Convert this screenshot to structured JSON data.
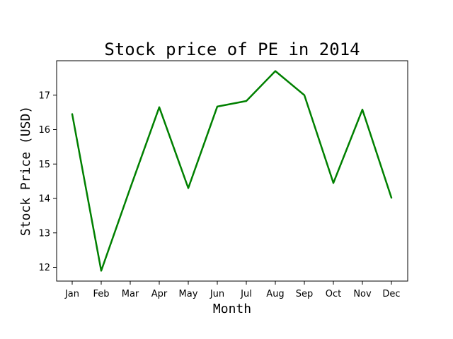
{
  "chart_data": {
    "type": "line",
    "title": "Stock price of PE in 2014",
    "xlabel": "Month",
    "ylabel": "Stock Price (USD)",
    "categories": [
      "Jan",
      "Feb",
      "Mar",
      "Apr",
      "May",
      "Jun",
      "Jul",
      "Aug",
      "Sep",
      "Oct",
      "Nov",
      "Dec"
    ],
    "series": [
      {
        "values": [
          16.45,
          11.9,
          14.3,
          16.65,
          14.3,
          16.67,
          16.83,
          17.7,
          17.0,
          14.45,
          16.58,
          14.02
        ],
        "color": "#008000"
      }
    ],
    "yticks": [
      12,
      13,
      14,
      15,
      16,
      17
    ],
    "ylim": [
      11.6,
      18.0
    ],
    "grid": false
  }
}
